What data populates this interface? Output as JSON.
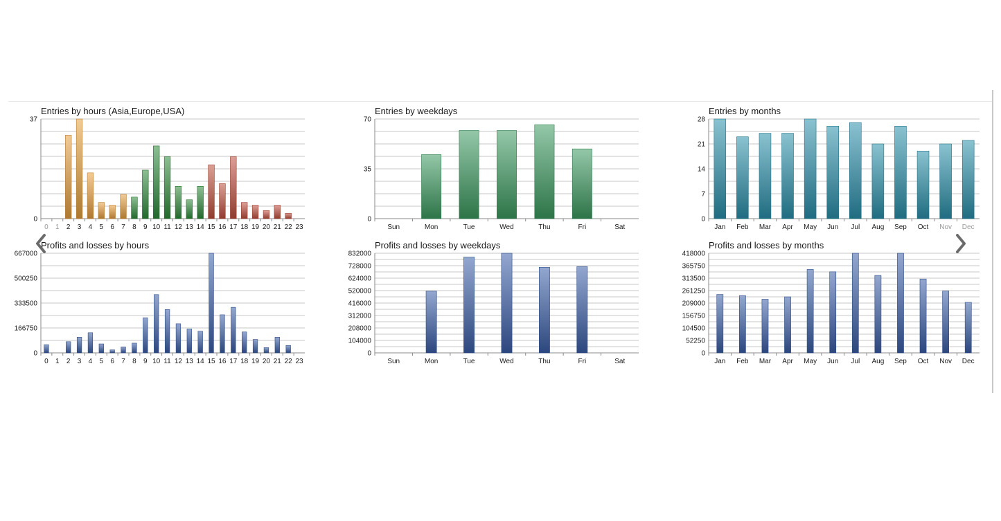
{
  "navigation": {
    "prev_icon": "chevron-left-icon",
    "next_icon": "chevron-right-icon"
  },
  "chart_data": [
    {
      "id": "hours-entries",
      "type": "bar",
      "title": "Entries by hours (Asia,Europe,USA)",
      "categories": [
        "0",
        "1",
        "2",
        "3",
        "4",
        "5",
        "6",
        "7",
        "8",
        "9",
        "10",
        "11",
        "12",
        "13",
        "14",
        "15",
        "16",
        "17",
        "18",
        "19",
        "20",
        "21",
        "22",
        "23"
      ],
      "values": [
        0,
        0,
        31,
        37,
        17,
        6,
        5,
        9,
        8,
        18,
        27,
        23,
        12,
        7,
        12,
        20,
        13,
        23,
        6,
        5,
        3,
        5,
        2,
        0
      ],
      "bar_colors": [
        "#e8a040",
        "#e8a040",
        "#e8a040",
        "#e8a040",
        "#e8a040",
        "#e8a040",
        "#e8a040",
        "#e8a040",
        "#2e8b3a",
        "#2e8b3a",
        "#2e8b3a",
        "#2e8b3a",
        "#2e8b3a",
        "#2e8b3a",
        "#2e8b3a",
        "#c0503f",
        "#c0503f",
        "#c0503f",
        "#c0503f",
        "#c0503f",
        "#c0503f",
        "#c0503f",
        "#c0503f",
        "#c0503f"
      ],
      "dim_ticks": [
        "0",
        "1"
      ],
      "yticks": [
        "0",
        "37"
      ],
      "ylim": [
        0,
        37
      ],
      "grid": true
    },
    {
      "id": "weekday-entries",
      "type": "bar",
      "title": "Entries by weekdays",
      "categories": [
        "Sun",
        "Mon",
        "Tue",
        "Wed",
        "Thu",
        "Fri",
        "Sat"
      ],
      "values": [
        0,
        45,
        62,
        62,
        66,
        49,
        0
      ],
      "bar_color": "#3c9a60",
      "yticks": [
        "0",
        "35",
        "70"
      ],
      "ylim": [
        0,
        70
      ],
      "grid": true
    },
    {
      "id": "month-entries",
      "type": "bar",
      "title": "Entries by months",
      "categories": [
        "Jan",
        "Feb",
        "Mar",
        "Apr",
        "May",
        "Jun",
        "Jul",
        "Aug",
        "Sep",
        "Oct",
        "Nov",
        "Dec"
      ],
      "values": [
        28,
        23,
        24,
        24,
        28,
        26,
        27,
        21,
        26,
        19,
        21,
        22
      ],
      "bar_color": "#2a90aa",
      "dim_ticks": [
        "Nov",
        "Dec"
      ],
      "yticks": [
        "0",
        "7",
        "14",
        "21",
        "28"
      ],
      "ylim": [
        0,
        28
      ],
      "grid": true
    },
    {
      "id": "hours-pnl",
      "type": "bar",
      "title": "Profits and losses by hours",
      "categories": [
        "0",
        "1",
        "2",
        "3",
        "4",
        "5",
        "6",
        "7",
        "8",
        "9",
        "10",
        "11",
        "12",
        "13",
        "14",
        "15",
        "16",
        "17",
        "18",
        "19",
        "20",
        "21",
        "22",
        "23"
      ],
      "values": [
        55000,
        0,
        75000,
        105000,
        135000,
        60000,
        20000,
        40000,
        65000,
        235000,
        390000,
        290000,
        195000,
        160000,
        145000,
        667000,
        255000,
        305000,
        140000,
        90000,
        35000,
        105000,
        50000,
        0
      ],
      "bar_color": "#3a5fa8",
      "yticks": [
        "0",
        "166750",
        "333500",
        "500250",
        "667000"
      ],
      "ylim": [
        0,
        667000
      ],
      "grid": true
    },
    {
      "id": "weekday-pnl",
      "type": "bar",
      "title": "Profits and losses by weekdays",
      "categories": [
        "Sun",
        "Mon",
        "Tue",
        "Wed",
        "Thu",
        "Fri",
        "Sat"
      ],
      "values": [
        0,
        515000,
        800000,
        832000,
        715000,
        720000,
        0
      ],
      "bar_color": "#3a5fa8",
      "yticks": [
        "0",
        "104000",
        "208000",
        "312000",
        "416000",
        "520000",
        "624000",
        "728000",
        "832000"
      ],
      "ylim": [
        0,
        832000
      ],
      "grid": true
    },
    {
      "id": "month-pnl",
      "type": "bar",
      "title": "Profits and losses by months",
      "categories": [
        "Jan",
        "Feb",
        "Mar",
        "Apr",
        "May",
        "Jun",
        "Jul",
        "Aug",
        "Sep",
        "Oct",
        "Nov",
        "Dec"
      ],
      "values": [
        245000,
        240000,
        225000,
        235000,
        350000,
        340000,
        418000,
        325000,
        418000,
        310000,
        260000,
        212000
      ],
      "bar_color": "#3a5fa8",
      "yticks": [
        "0",
        "52250",
        "104500",
        "156750",
        "209000",
        "261250",
        "313500",
        "365750",
        "418000"
      ],
      "ylim": [
        0,
        418000
      ],
      "grid": true
    }
  ]
}
